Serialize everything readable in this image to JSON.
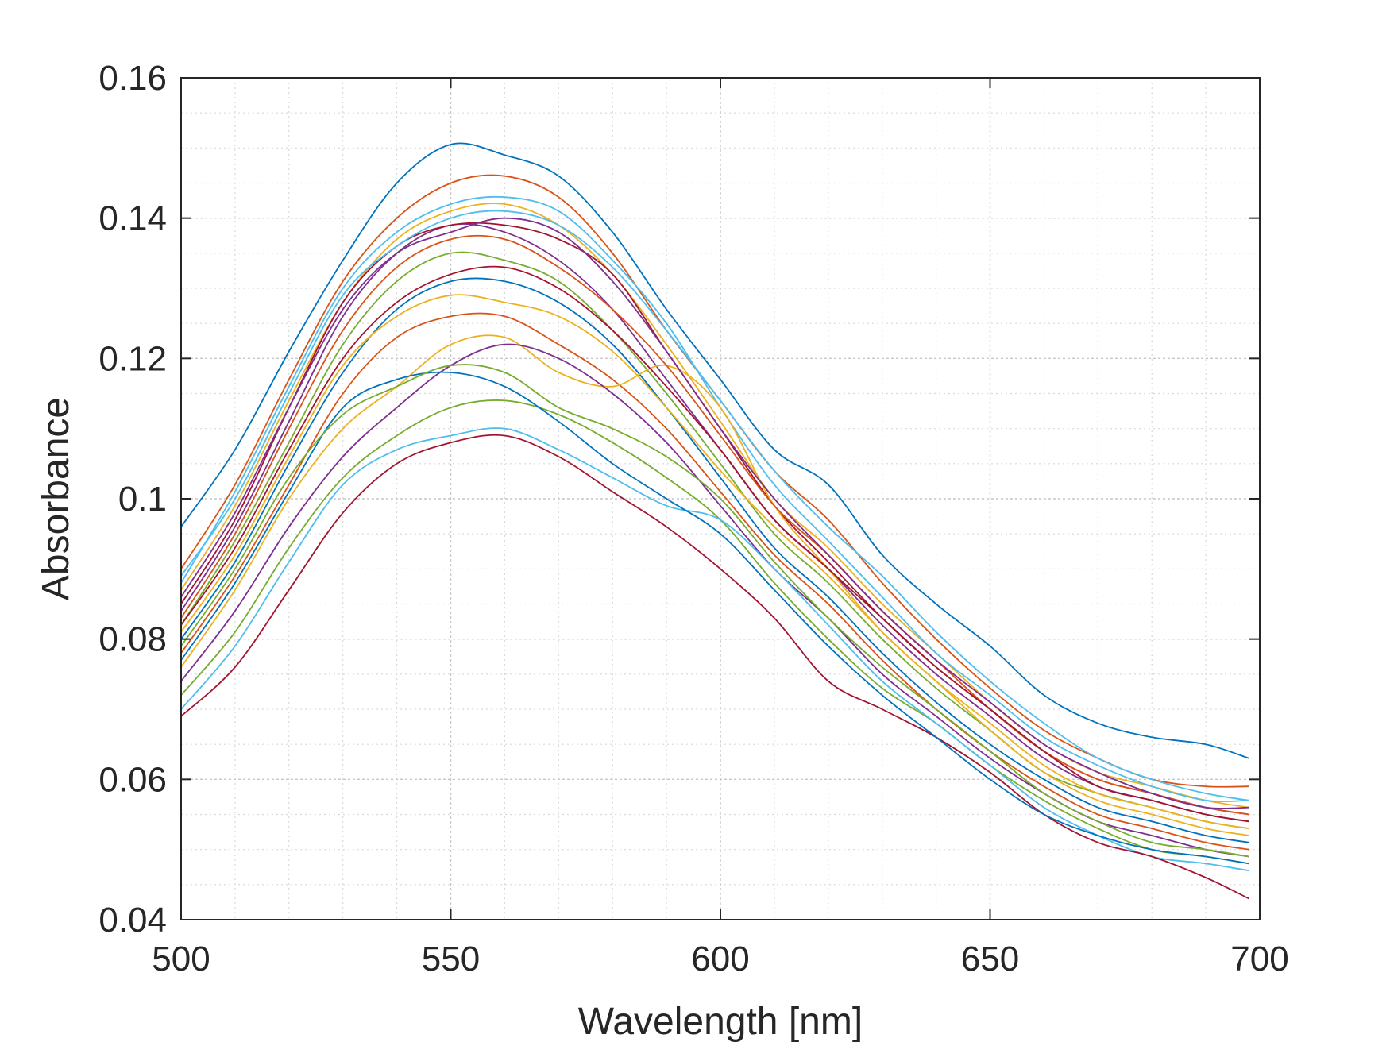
{
  "chart_data": {
    "type": "line",
    "title": "",
    "xlabel": "Wavelength [nm]",
    "ylabel": "Absorbance",
    "xlim": [
      500,
      700
    ],
    "ylim": [
      0.04,
      0.16
    ],
    "x_ticks": [
      500,
      550,
      600,
      650,
      700
    ],
    "y_ticks": [
      0.04,
      0.06,
      0.08,
      0.1,
      0.12,
      0.14,
      0.16
    ],
    "x_tick_labels": [
      "500",
      "550",
      "600",
      "650",
      "700"
    ],
    "y_tick_labels": [
      "0.04",
      "0.06",
      "0.08",
      "0.1",
      "0.12",
      "0.14",
      "0.16"
    ],
    "grid": true,
    "minor_grid": true,
    "legend": "none",
    "colors": [
      "#0072BD",
      "#D95319",
      "#EDB120",
      "#7E2F8E",
      "#77AC30",
      "#4DBEEE",
      "#A2142F"
    ],
    "x": [
      500,
      510,
      520,
      530,
      540,
      550,
      560,
      570,
      580,
      590,
      600,
      610,
      620,
      630,
      640,
      650,
      660,
      670,
      680,
      690,
      698
    ],
    "series": [
      {
        "values": [
          0.096,
          0.107,
          0.121,
          0.134,
          0.145,
          0.1505,
          0.149,
          0.146,
          0.138,
          0.127,
          0.117,
          0.107,
          0.102,
          0.092,
          0.085,
          0.079,
          0.072,
          0.068,
          0.066,
          0.065,
          0.063
        ]
      },
      {
        "values": [
          0.09,
          0.102,
          0.117,
          0.131,
          0.14,
          0.145,
          0.146,
          0.143,
          0.135,
          0.124,
          0.114,
          0.104,
          0.097,
          0.088,
          0.08,
          0.073,
          0.067,
          0.063,
          0.06,
          0.059,
          0.059
        ]
      },
      {
        "values": [
          0.087,
          0.099,
          0.114,
          0.128,
          0.137,
          0.141,
          0.142,
          0.139,
          0.132,
          0.122,
          0.111,
          0.1,
          0.093,
          0.085,
          0.078,
          0.071,
          0.065,
          0.061,
          0.059,
          0.057,
          0.056
        ]
      },
      {
        "values": [
          0.084,
          0.096,
          0.111,
          0.126,
          0.135,
          0.139,
          0.138,
          0.134,
          0.127,
          0.117,
          0.107,
          0.097,
          0.09,
          0.082,
          0.075,
          0.069,
          0.063,
          0.059,
          0.057,
          0.055,
          0.054
        ]
      },
      {
        "values": [
          0.082,
          0.094,
          0.108,
          0.122,
          0.131,
          0.135,
          0.134,
          0.131,
          0.124,
          0.115,
          0.105,
          0.095,
          0.088,
          0.08,
          0.073,
          0.067,
          0.061,
          0.058,
          0.056,
          0.054,
          0.053
        ]
      },
      {
        "values": [
          0.088,
          0.101,
          0.116,
          0.13,
          0.138,
          0.142,
          0.143,
          0.141,
          0.134,
          0.125,
          0.113,
          0.102,
          0.094,
          0.086,
          0.078,
          0.072,
          0.066,
          0.062,
          0.059,
          0.057,
          0.057
        ]
      },
      {
        "values": [
          0.085,
          0.097,
          0.113,
          0.128,
          0.136,
          0.139,
          0.139,
          0.137,
          0.132,
          0.121,
          0.11,
          0.099,
          0.091,
          0.083,
          0.076,
          0.07,
          0.064,
          0.06,
          0.058,
          0.056,
          0.055
        ]
      },
      {
        "values": [
          0.08,
          0.091,
          0.105,
          0.118,
          0.127,
          0.131,
          0.131,
          0.128,
          0.122,
          0.113,
          0.103,
          0.093,
          0.086,
          0.078,
          0.071,
          0.065,
          0.06,
          0.056,
          0.054,
          0.052,
          0.051
        ]
      },
      {
        "values": [
          0.078,
          0.089,
          0.102,
          0.115,
          0.123,
          0.126,
          0.126,
          0.122,
          0.117,
          0.11,
          0.101,
          0.092,
          0.085,
          0.077,
          0.07,
          0.064,
          0.059,
          0.055,
          0.053,
          0.051,
          0.05
        ]
      },
      {
        "values": [
          0.076,
          0.087,
          0.1,
          0.11,
          0.116,
          0.122,
          0.123,
          0.118,
          0.116,
          0.119,
          0.113,
          0.099,
          0.09,
          0.081,
          0.074,
          0.067,
          0.061,
          0.057,
          0.055,
          0.053,
          0.052
        ]
      },
      {
        "values": [
          0.074,
          0.084,
          0.096,
          0.106,
          0.113,
          0.119,
          0.122,
          0.12,
          0.115,
          0.108,
          0.099,
          0.09,
          0.083,
          0.075,
          0.069,
          0.063,
          0.058,
          0.054,
          0.052,
          0.05,
          0.049
        ]
      },
      {
        "values": [
          0.072,
          0.081,
          0.093,
          0.103,
          0.109,
          0.113,
          0.114,
          0.112,
          0.108,
          0.103,
          0.097,
          0.088,
          0.08,
          0.073,
          0.068,
          0.062,
          0.057,
          0.053,
          0.05,
          0.049,
          0.048
        ]
      },
      {
        "values": [
          0.07,
          0.079,
          0.091,
          0.102,
          0.107,
          0.109,
          0.11,
          0.107,
          0.103,
          0.099,
          0.097,
          0.09,
          0.082,
          0.074,
          0.068,
          0.062,
          0.056,
          0.052,
          0.049,
          0.048,
          0.047
        ]
      },
      {
        "values": [
          0.069,
          0.076,
          0.087,
          0.098,
          0.105,
          0.108,
          0.109,
          0.106,
          0.101,
          0.096,
          0.09,
          0.083,
          0.074,
          0.07,
          0.066,
          0.061,
          0.055,
          0.051,
          0.049,
          0.046,
          0.043
        ]
      },
      {
        "values": [
          0.077,
          0.088,
          0.101,
          0.113,
          0.117,
          0.118,
          0.116,
          0.111,
          0.105,
          0.1,
          0.095,
          0.087,
          0.079,
          0.072,
          0.066,
          0.06,
          0.055,
          0.052,
          0.05,
          0.049,
          0.048
        ]
      },
      {
        "values": [
          0.083,
          0.095,
          0.11,
          0.124,
          0.133,
          0.137,
          0.137,
          0.133,
          0.127,
          0.119,
          0.109,
          0.099,
          0.092,
          0.084,
          0.077,
          0.07,
          0.064,
          0.06,
          0.058,
          0.056,
          0.055
        ]
      },
      {
        "values": [
          0.081,
          0.092,
          0.106,
          0.119,
          0.126,
          0.129,
          0.128,
          0.126,
          0.121,
          0.113,
          0.104,
          0.096,
          0.089,
          0.081,
          0.074,
          0.068,
          0.062,
          0.058,
          0.056,
          0.054,
          0.053
        ]
      },
      {
        "values": [
          0.086,
          0.098,
          0.113,
          0.127,
          0.135,
          0.138,
          0.14,
          0.138,
          0.131,
          0.121,
          0.11,
          0.1,
          0.092,
          0.084,
          0.077,
          0.071,
          0.065,
          0.061,
          0.058,
          0.056,
          0.056
        ]
      },
      {
        "values": [
          0.079,
          0.09,
          0.103,
          0.112,
          0.116,
          0.119,
          0.118,
          0.113,
          0.11,
          0.106,
          0.1,
          0.091,
          0.083,
          0.076,
          0.07,
          0.064,
          0.058,
          0.054,
          0.051,
          0.05,
          0.049
        ]
      },
      {
        "values": [
          0.089,
          0.1,
          0.115,
          0.129,
          0.136,
          0.14,
          0.141,
          0.139,
          0.133,
          0.124,
          0.114,
          0.104,
          0.096,
          0.089,
          0.081,
          0.074,
          0.068,
          0.063,
          0.06,
          0.058,
          0.057
        ]
      },
      {
        "values": [
          0.082,
          0.093,
          0.107,
          0.12,
          0.128,
          0.132,
          0.133,
          0.13,
          0.124,
          0.116,
          0.107,
          0.097,
          0.09,
          0.083,
          0.076,
          0.07,
          0.064,
          0.059,
          0.057,
          0.055,
          0.054
        ]
      }
    ]
  }
}
